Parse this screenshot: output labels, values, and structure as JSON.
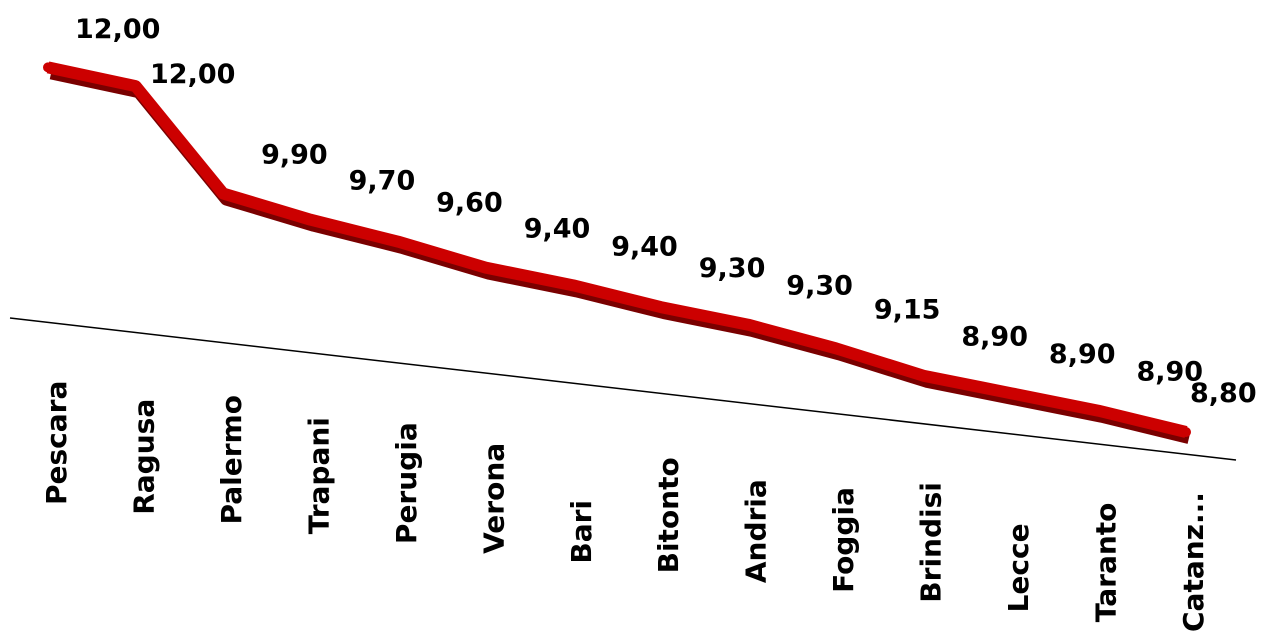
{
  "chart_data": {
    "type": "line",
    "categories": [
      "Pescara",
      "Ragusa",
      "Palermo",
      "Trapani",
      "Perugia",
      "Verona",
      "Bari",
      "Bitonto",
      "Andria",
      "Foggia",
      "Brindisi",
      "Lecce",
      "Taranto",
      "Catanz..."
    ],
    "series": [
      {
        "values": [
          12.0,
          12.0,
          9.9,
          9.7,
          9.6,
          9.4,
          9.4,
          9.3,
          9.3,
          9.15,
          8.9,
          8.9,
          8.9,
          8.8
        ],
        "value_labels": [
          "12,00",
          "12,00",
          "9,90",
          "9,70",
          "9,60",
          "9,40",
          "9,40",
          "9,30",
          "9,30",
          "9,15",
          "8,90",
          "8,90",
          "8,90",
          "8,80"
        ],
        "color": "#cc0000"
      }
    ],
    "title": "",
    "xlabel": "",
    "ylabel": "",
    "grid": false,
    "legend": "none",
    "style": "3d-perspective"
  }
}
